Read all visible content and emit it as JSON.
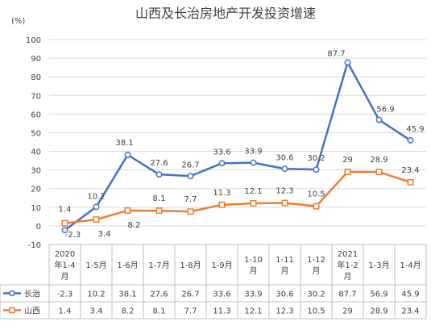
{
  "chart_data": {
    "type": "line",
    "title": "山西及长治房地产开发投资增速",
    "ylabel": "(%)",
    "ylim": [
      -10,
      100
    ],
    "yticks": [
      -10,
      0,
      10,
      20,
      30,
      40,
      50,
      60,
      70,
      80,
      90,
      100
    ],
    "grid": true,
    "legend": "bottom-table",
    "categories": [
      [
        "2020",
        "年1-4",
        "月"
      ],
      [
        "1-5月"
      ],
      [
        "1-6月"
      ],
      [
        "1-7月"
      ],
      [
        "1-8月"
      ],
      [
        "1-9月"
      ],
      [
        "1-10",
        "月"
      ],
      [
        "1-11",
        "月"
      ],
      [
        "1-12",
        "月"
      ],
      [
        "2021",
        "年1-2",
        "月"
      ],
      [
        "1-3月"
      ],
      [
        "1-4月"
      ]
    ],
    "series": [
      {
        "name": "长治",
        "color": "#4472C4",
        "marker": "circle",
        "values": [
          -2.3,
          10.2,
          38.1,
          27.6,
          26.7,
          33.6,
          33.9,
          30.6,
          30.2,
          87.7,
          56.9,
          45.9
        ],
        "labels": [
          "-2.3",
          "10.2",
          "38.1",
          "27.6",
          "26.7",
          "33.6",
          "33.9",
          "30.6",
          "30.2",
          "87.7",
          "56.9",
          "45.9"
        ]
      },
      {
        "name": "山西",
        "color": "#ED7D31",
        "marker": "square",
        "values": [
          1.4,
          3.4,
          8.2,
          8.1,
          7.7,
          11.3,
          12.1,
          12.3,
          10.5,
          29,
          28.9,
          23.4
        ],
        "labels": [
          "1.4",
          "3.4",
          "8.2",
          "8.1",
          "7.7",
          "11.3",
          "12.1",
          "12.3",
          "10.5",
          "29",
          "28.9",
          "23.4"
        ]
      }
    ]
  }
}
